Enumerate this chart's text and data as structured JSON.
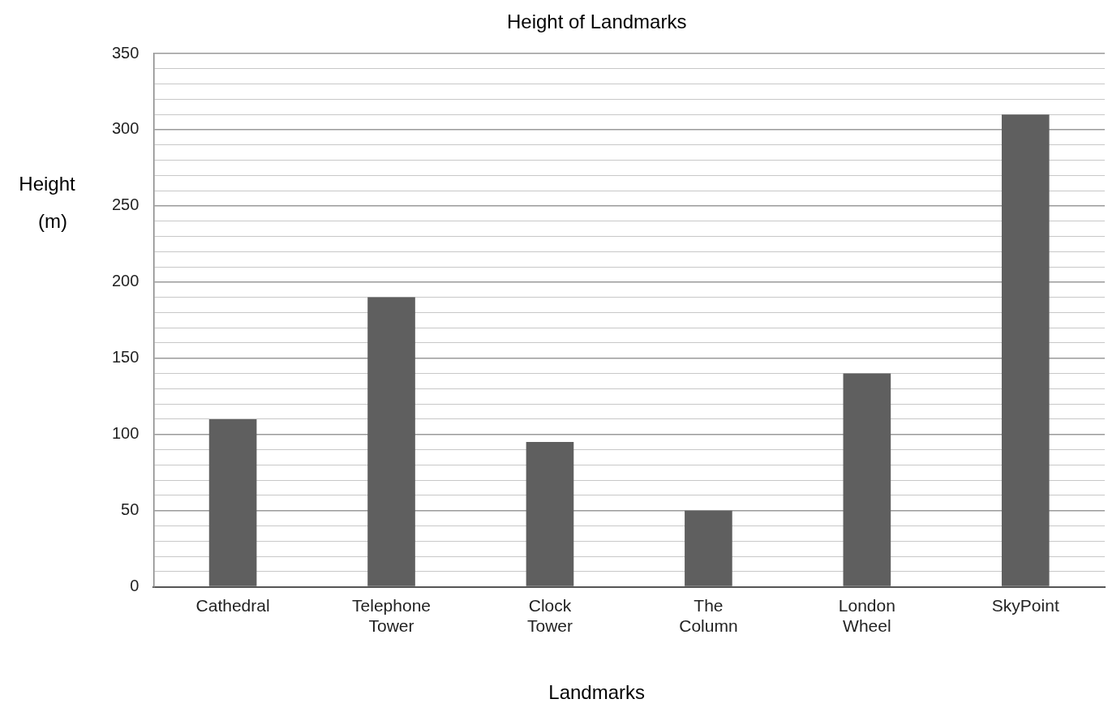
{
  "chart_data": {
    "type": "bar",
    "title": "Height of Landmarks",
    "xlabel": "Landmarks",
    "ylabel": "Height (m)",
    "categories": [
      "Cathedral",
      "Telephone Tower",
      "Clock Tower",
      "The Column",
      "London Wheel",
      "SkyPoint"
    ],
    "values": [
      110,
      190,
      95,
      50,
      140,
      310
    ],
    "color": "#5f5f5f",
    "ylim": [
      0,
      350
    ],
    "yticks": [
      0,
      {
        "value": 10,
        "label": null
      },
      {
        "value": 20,
        "label": null
      },
      {
        "value": 30,
        "label": null
      },
      {
        "value": 40,
        "label": null
      },
      50,
      {
        "value": 60,
        "label": null
      },
      {
        "value": 70,
        "label": null
      },
      {
        "value": 80,
        "label": null
      },
      {
        "value": 90,
        "label": null
      },
      100,
      {
        "value": 110,
        "label": null
      },
      {
        "value": 120,
        "label": null
      },
      {
        "value": 130,
        "label": null
      },
      {
        "value": 140,
        "label": null
      },
      150,
      {
        "value": 160,
        "label": null
      },
      {
        "value": 170,
        "label": null
      },
      {
        "value": 180,
        "label": null
      },
      {
        "value": 190,
        "label": null
      },
      200,
      {
        "value": 210,
        "label": null
      },
      {
        "value": 220,
        "label": null
      },
      {
        "value": 230,
        "label": null
      },
      {
        "value": 240,
        "label": null
      },
      250,
      {
        "value": 260,
        "label": null
      },
      {
        "value": 270,
        "label": null
      },
      {
        "value": 280,
        "label": null
      },
      {
        "value": 290,
        "label": null
      },
      300,
      {
        "value": 310,
        "label": null
      },
      {
        "value": 320,
        "label": null
      },
      {
        "value": 330,
        "label": null
      },
      {
        "value": 340,
        "label": null
      },
      350
    ],
    "grid": "y",
    "legend": false
  }
}
